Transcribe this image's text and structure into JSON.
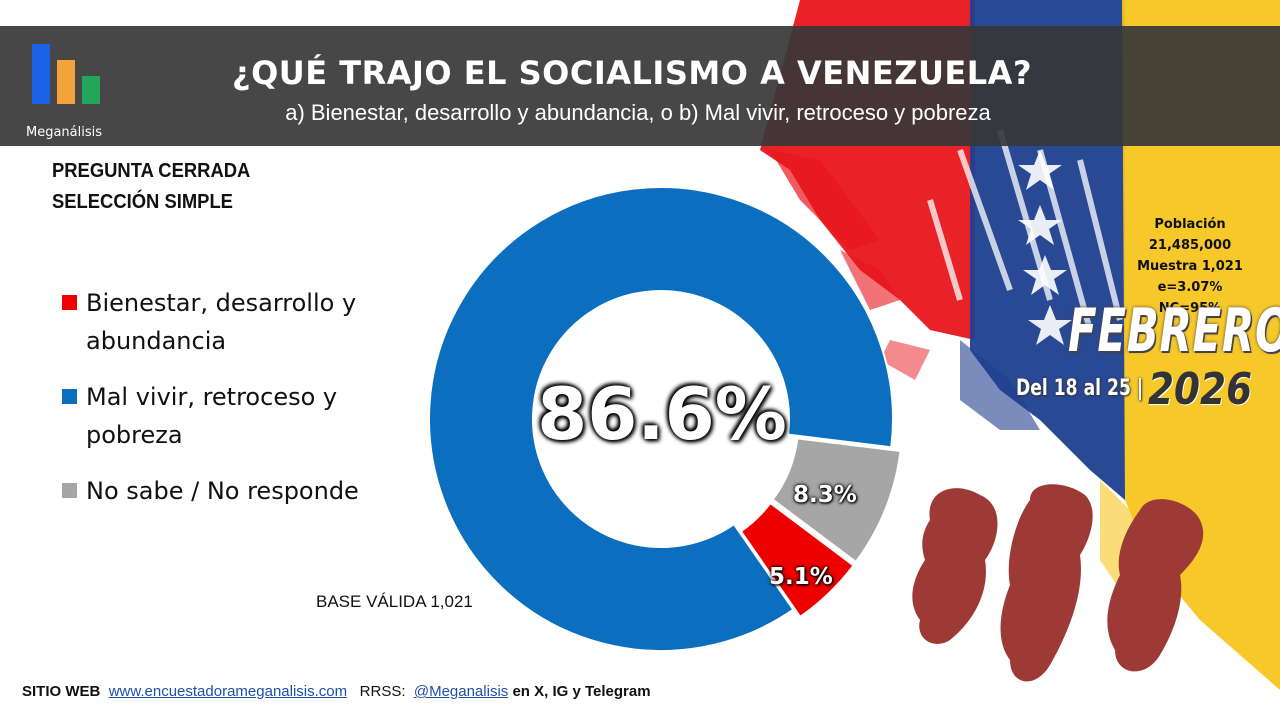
{
  "header": {
    "logo_text": "Meganálisis",
    "title": "¿QUÉ TRAJO EL SOCIALISMO A VENEZUELA?",
    "subtitle": "a) Bienestar, desarrollo y abundancia, o  b) Mal vivir, retroceso y pobreza"
  },
  "question_type": {
    "line1": "PREGUNTA  CERRADA",
    "line2": "SELECCIÓN SIMPLE"
  },
  "survey_info": {
    "population_label": "Población",
    "population_value": "21,485,000",
    "sample": "Muestra 1,021",
    "error": "e=3.07%  NC=95%",
    "month": "FEBRERO",
    "date_range": "Del 18 al 25 |",
    "year": "2026"
  },
  "base_label": "BASE VÁLIDA 1,021",
  "footer": {
    "site_label": "SITIO WEB",
    "site_url": "www.encuestadorameganalisis.com",
    "social_label": "RRSS:",
    "social_handle": "@Meganalisis",
    "social_suffix": "en X, IG y Telegram"
  },
  "colors": {
    "blue": "#0b6ebf",
    "red": "#ee0000",
    "gray": "#a6a6a6",
    "header_bg": "#373737"
  },
  "chart_data": {
    "type": "pie",
    "style": "donut",
    "categories": [
      "Bienestar, desarrollo y abundancia",
      "Mal vivir, retroceso y pobreza",
      "No sabe / No responde"
    ],
    "values": [
      5.1,
      86.6,
      8.3
    ],
    "labels": [
      "5.1%",
      "86.6%",
      "8.3%"
    ],
    "colors": [
      "#ee0000",
      "#0b6ebf",
      "#a6a6a6"
    ],
    "legend": [
      {
        "line1": "Bienestar, desarrollo y",
        "line2": "abundancia",
        "color": "#ee0000"
      },
      {
        "line1": "Mal vivir, retroceso y",
        "line2": "pobreza",
        "color": "#0b6ebf"
      },
      {
        "line1": "No sabe / No responde",
        "line2": "",
        "color": "#a6a6a6"
      }
    ],
    "legend_position": "left",
    "title": "¿QUÉ TRAJO EL SOCIALISMO A VENEZUELA?"
  }
}
